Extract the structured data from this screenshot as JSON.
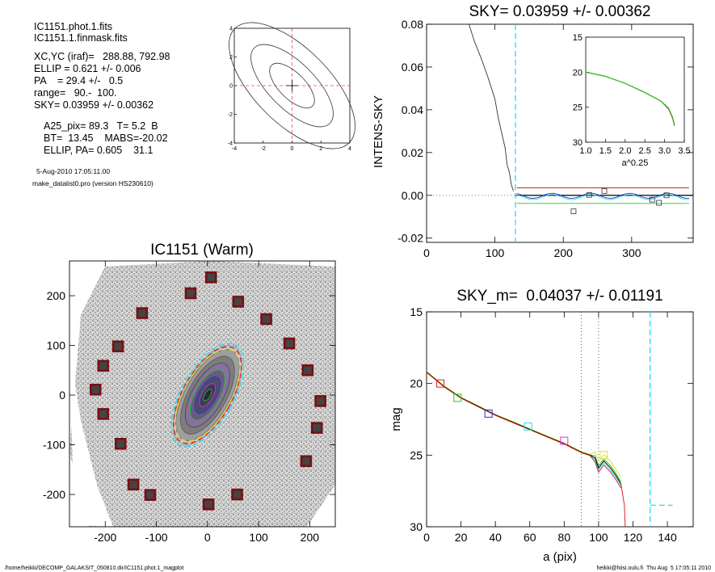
{
  "info": {
    "files": [
      "IC1151.phot.1.fits",
      "IC1151.1.finmask.fits"
    ],
    "params": [
      "XC,YC (iraf)=   288.88, 792.98",
      "ELLIP = 0.621 +/- 0.006",
      "PA    = 29.4 +/-   0.5",
      "range=   90.-  100.",
      "SKY= 0.03959 +/- 0.00362"
    ],
    "params2": [
      "A25_pix= 89.3   T= 5.2  B",
      "BT=  13.45    MABS=-20.02",
      "ELLIP, PA= 0.605    31.1"
    ],
    "timestamp": "5-Aug-2010 17:05:11.00",
    "program": "make_datalist0.pro (version HS230610)"
  },
  "footer": {
    "left": "/home/heikki/DECOMP_GALAKSIT_050810.dir/IC1151.phot.1_magplot",
    "right": "heikki@hiisi.oulu.fi  Thu Aug  5 17:05:11 2010"
  },
  "colors": {
    "cyan": "#22ddee",
    "red": "#dd2222",
    "green": "#22cc22",
    "blue": "#2233cc",
    "magenta": "#dd33cc",
    "yellow": "#dddd22",
    "maroon": "#7a0f12"
  },
  "chart_data": [
    {
      "id": "contour-mini",
      "type": "contour",
      "title": "",
      "xlim": [
        -4,
        4
      ],
      "ylim": [
        -4,
        4
      ],
      "xticks": [
        "-4",
        "-2",
        "0",
        "2",
        "4"
      ],
      "yticks": [
        "4",
        "2",
        "0",
        "-2",
        "-4"
      ],
      "crosshair": [
        0,
        0
      ]
    },
    {
      "id": "sky-profile",
      "type": "line",
      "title": "SKY= 0.03959 +/- 0.00362",
      "xlabel": "",
      "ylabel": "INTENS-SKY",
      "xlim": [
        0,
        390
      ],
      "ylim": [
        -0.022,
        0.08
      ],
      "xticks": [
        "0",
        "100",
        "200",
        "300"
      ],
      "yticks": [
        "0.08",
        "0.06",
        "0.04",
        "0.02",
        "0.00",
        "-0.02"
      ],
      "cutoff_x": 130,
      "series": [
        {
          "x": [
            62,
            70,
            80,
            90,
            100,
            105,
            110,
            115,
            118,
            121,
            124,
            127
          ],
          "y": [
            0.08,
            0.072,
            0.064,
            0.055,
            0.045,
            0.036,
            0.029,
            0.022,
            0.014,
            0.011,
            0.005,
            0.002
          ]
        }
      ],
      "sky_points": {
        "x": [
          215,
          238,
          260,
          330,
          340,
          351
        ],
        "y": [
          -0.0075,
          0.0002,
          0.002,
          -0.002,
          -0.0035,
          0.0
        ]
      },
      "inset": {
        "xlabel": "a^0.25",
        "xlim": [
          1.0,
          3.5
        ],
        "ylim": [
          15,
          30
        ],
        "xticks": [
          "1.0",
          "1.5",
          "2.0",
          "2.5",
          "3.0",
          "3.5"
        ],
        "yticks": [
          "15",
          "20",
          "25",
          "30"
        ],
        "x": [
          1.0,
          1.5,
          2.0,
          2.5,
          2.9,
          3.1,
          3.2,
          3.25
        ],
        "y": [
          20.0,
          20.6,
          21.6,
          22.9,
          24.1,
          25.1,
          26.4,
          27.5
        ]
      }
    },
    {
      "id": "galaxy-image",
      "type": "scatter",
      "title": "IC1151 (Warm)",
      "xlim": [
        -270,
        250
      ],
      "ylim": [
        -265,
        270
      ],
      "xticks": [
        "-200",
        "-100",
        "0",
        "100",
        "200"
      ],
      "yticks": [
        "200",
        "100",
        "0",
        "-100",
        "-200"
      ],
      "sky_boxes": {
        "x": [
          7,
          60,
          -33,
          -128,
          115,
          -175,
          160,
          -204,
          196,
          -219,
          221,
          -204,
          214,
          -170,
          193,
          -145,
          58,
          -112,
          2
        ],
        "y": [
          237,
          188,
          205,
          165,
          153,
          98,
          104,
          59,
          50,
          11,
          -12,
          -38,
          -66,
          -98,
          -133,
          -180,
          -200,
          -201,
          -220
        ]
      },
      "galaxy": {
        "center": [
          0,
          0
        ],
        "semi_major": 100,
        "ellip": 0.621,
        "pa": 29.4
      }
    },
    {
      "id": "surface-brightness",
      "type": "line",
      "title": "SKY_m=  0.04037 +/- 0.01191",
      "xlabel": "a (pix)",
      "ylabel": "mag",
      "xlim": [
        0,
        155
      ],
      "ylim": [
        15,
        30
      ],
      "xticks": [
        "0",
        "20",
        "40",
        "60",
        "80",
        "100",
        "120",
        "140"
      ],
      "yticks": [
        "15",
        "20",
        "25",
        "30"
      ],
      "range_lines": [
        90,
        100
      ],
      "cutoff_x": 130,
      "series": [
        {
          "name": "",
          "x": [
            0,
            10,
            20,
            30,
            40,
            50,
            60,
            70,
            80,
            90,
            95,
            98,
            100,
            103,
            107,
            110,
            113
          ],
          "y": [
            19.2,
            20.2,
            21.0,
            21.6,
            22.2,
            22.7,
            23.2,
            23.7,
            24.2,
            24.8,
            25.0,
            25.2,
            25.9,
            25.4,
            25.9,
            26.4,
            27.0
          ]
        }
      ],
      "markers": [
        {
          "x": 8,
          "y": 20.0,
          "color": "#dd2222"
        },
        {
          "x": 18,
          "y": 21.0,
          "color": "#22cc22"
        },
        {
          "x": 36,
          "y": 22.1,
          "color": "#2233cc"
        },
        {
          "x": 59,
          "y": 23.0,
          "color": "#22ddee"
        },
        {
          "x": 80,
          "y": 24.0,
          "color": "#dd33cc"
        },
        {
          "x": 103,
          "y": 25.0,
          "color": "#dddd22"
        }
      ],
      "sky_level_y": 28.5
    }
  ]
}
